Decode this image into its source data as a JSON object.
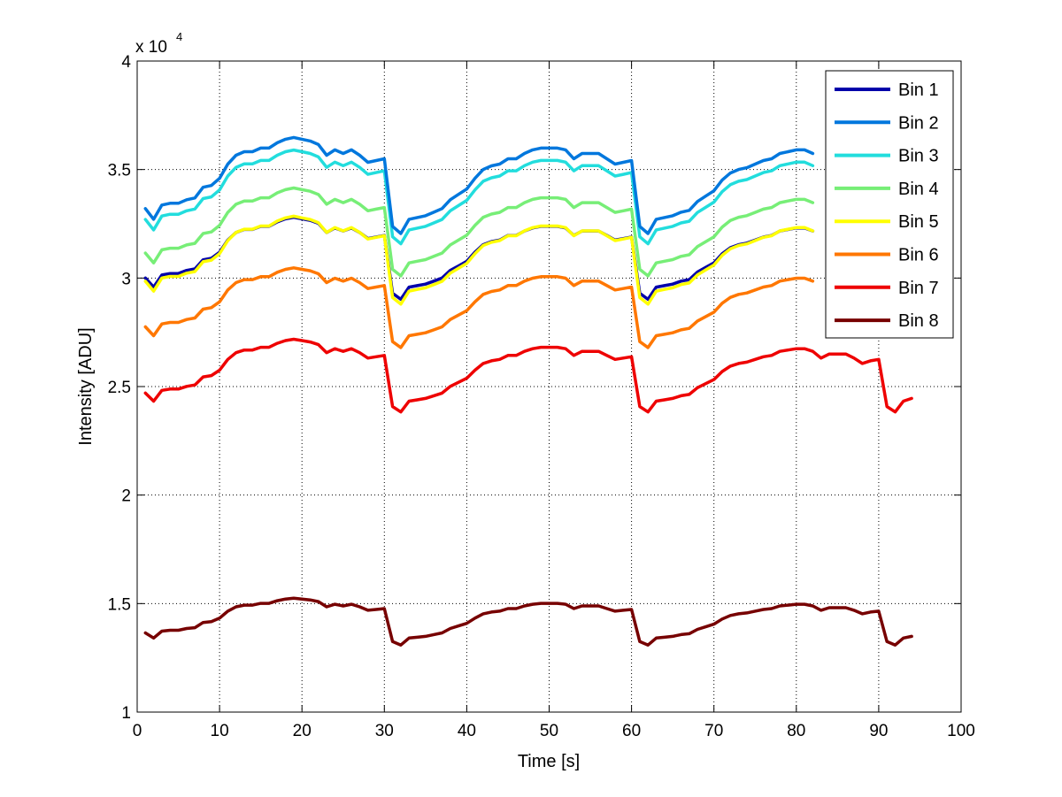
{
  "chart_data": {
    "type": "line",
    "xlabel": "Time [s]",
    "ylabel": "Intensity [ADU]",
    "xlim": [
      0,
      100
    ],
    "ylim": [
      1,
      4
    ],
    "y_multiplier_label": "x 10",
    "y_multiplier_exponent": "4",
    "xticks": [
      "0",
      "10",
      "20",
      "30",
      "40",
      "50",
      "60",
      "70",
      "80",
      "90",
      "100"
    ],
    "yticks": [
      "1",
      "1.5",
      "2",
      "2.5",
      "3",
      "3.5",
      "4"
    ],
    "grid": true,
    "legend_position": "top-right",
    "x": [
      1,
      2,
      3,
      4,
      5,
      6,
      7,
      8,
      9,
      10,
      11,
      12,
      13,
      14,
      15,
      16,
      17,
      18,
      19,
      20,
      21,
      22,
      23,
      24,
      25,
      26,
      27,
      28,
      29,
      30,
      31,
      32,
      33,
      34,
      35,
      36,
      37,
      38,
      39,
      40,
      41,
      42,
      43,
      44,
      45,
      46,
      47,
      48,
      49,
      50,
      51,
      52,
      53,
      54,
      55,
      56,
      57,
      58,
      59,
      60,
      61,
      62,
      63,
      64,
      65,
      66,
      67,
      68,
      69,
      70,
      71,
      72,
      73,
      74,
      75,
      76,
      77,
      78,
      79,
      80,
      81,
      82,
      83,
      84,
      85,
      86,
      87,
      88,
      89,
      90,
      91,
      92,
      93,
      94
    ],
    "base_shape": [
      0.0,
      -0.06,
      0.02,
      0.03,
      0.03,
      0.05,
      0.06,
      0.12,
      0.13,
      0.17,
      0.25,
      0.3,
      0.32,
      0.32,
      0.34,
      0.34,
      0.37,
      0.39,
      0.4,
      0.39,
      0.38,
      0.36,
      0.3,
      0.33,
      0.31,
      0.33,
      0.3,
      0.26,
      0.27,
      0.28,
      -0.1,
      -0.14,
      -0.06,
      -0.05,
      -0.04,
      -0.02,
      0.0,
      0.05,
      0.08,
      0.11,
      0.17,
      0.22,
      0.24,
      0.25,
      0.28,
      0.28,
      0.31,
      0.33,
      0.34,
      0.34,
      0.34,
      0.33,
      0.28,
      0.31,
      0.31,
      0.31,
      0.28,
      0.25,
      0.26,
      0.27,
      -0.1,
      -0.14,
      -0.06,
      -0.05,
      -0.04,
      -0.02,
      -0.01,
      0.04,
      0.07,
      0.1,
      0.16,
      0.2,
      0.22,
      0.23,
      0.25,
      0.27,
      0.28,
      0.31,
      0.32,
      0.33,
      0.33,
      0.31,
      0.26,
      0.29,
      0.29,
      0.29,
      0.26,
      0.22,
      0.24,
      0.25,
      -0.1,
      -0.14,
      -0.06,
      -0.04
    ],
    "series": [
      {
        "name": "Bin 1",
        "color": "#0000aa",
        "base": 3.0,
        "scale": 0.7,
        "end_x": 82
      },
      {
        "name": "Bin 2",
        "color": "#0077dd",
        "base": 3.32,
        "scale": 0.82,
        "end_x": 82
      },
      {
        "name": "Bin 3",
        "color": "#22dddd",
        "base": 3.27,
        "scale": 0.8,
        "end_x": 82
      },
      {
        "name": "Bin 4",
        "color": "#77ee77",
        "base": 3.115,
        "scale": 0.75,
        "end_x": 82
      },
      {
        "name": "Bin 5",
        "color": "#ffff00",
        "base": 2.985,
        "scale": 0.75,
        "end_x": 82
      },
      {
        "name": "Bin 6",
        "color": "#ff7700",
        "base": 2.775,
        "scale": 0.68,
        "end_x": 82
      },
      {
        "name": "Bin 7",
        "color": "#ee0000",
        "base": 2.47,
        "scale": 0.62,
        "end_x": 94
      },
      {
        "name": "Bin 8",
        "color": "#770000",
        "base": 1.365,
        "scale": 0.4,
        "end_x": 94
      }
    ]
  }
}
